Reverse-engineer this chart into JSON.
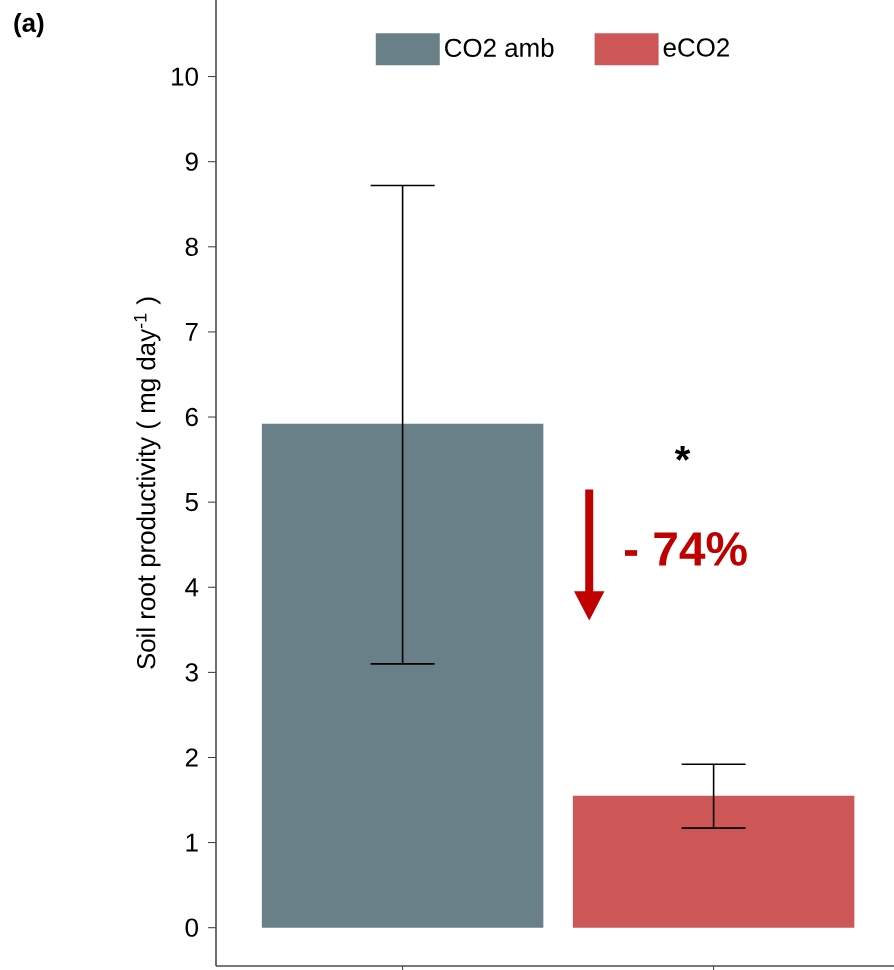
{
  "chart_data": {
    "type": "bar",
    "title": "(a)",
    "ylabel": "Soil root productivity ( mg day$^{-1}$ )",
    "categories": [
      null,
      null
    ],
    "series": [
      {
        "name": "CO2 amb",
        "color": "#6a8089",
        "values": [
          5.92,
          null
        ],
        "errors": [
          [
            3.1,
            8.72
          ],
          null
        ]
      },
      {
        "name": "eCO2",
        "color": "#cd5656",
        "values": [
          null,
          1.55
        ],
        "errors": [
          null,
          [
            1.17,
            1.92
          ]
        ]
      }
    ],
    "ylim": [
      -0.45,
      10.9
    ],
    "yticks": [
      0,
      1,
      2,
      3,
      4,
      5,
      6,
      7,
      8,
      9,
      10
    ],
    "legend": "top",
    "grid": false,
    "annotations": [
      "*",
      "- 74%"
    ]
  }
}
